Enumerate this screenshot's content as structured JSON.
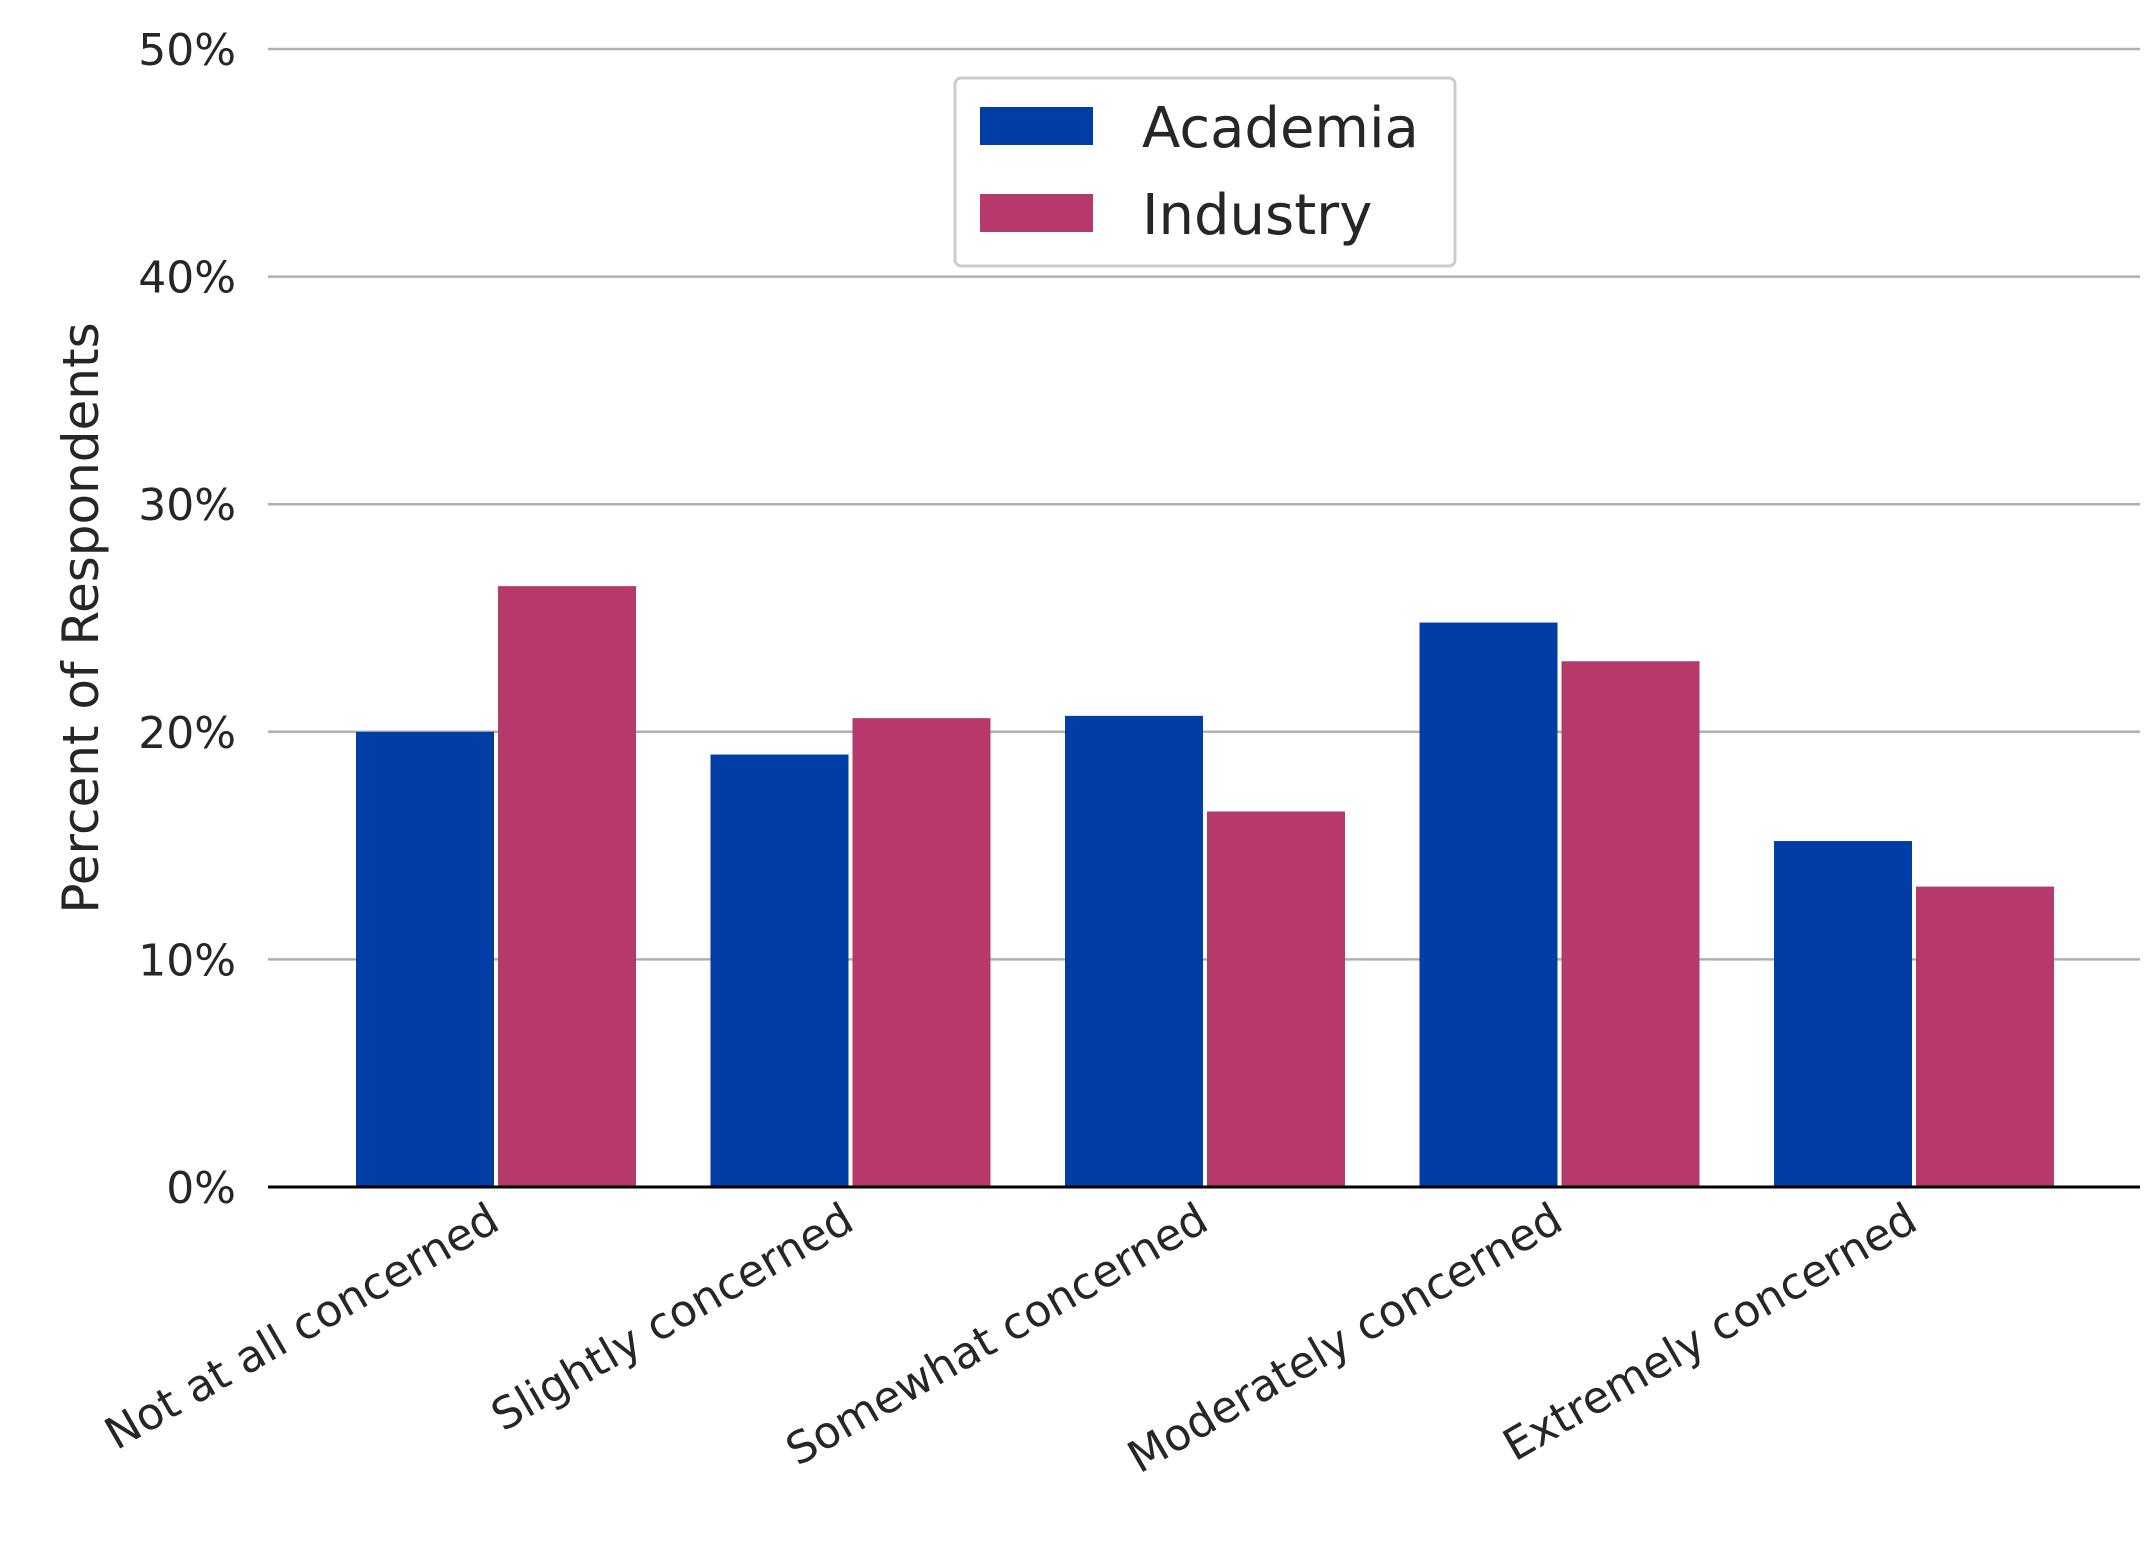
{
  "chart_data": {
    "type": "bar",
    "categories": [
      "Not at all concerned",
      "Slightly concerned",
      "Somewhat concerned",
      "Moderately concerned",
      "Extremely concerned"
    ],
    "series": [
      {
        "name": "Academia",
        "color": "#003da5",
        "values": [
          20.0,
          19.0,
          20.7,
          24.8,
          15.2
        ]
      },
      {
        "name": "Industry",
        "color": "#b53a6b",
        "values": [
          26.4,
          20.6,
          16.5,
          23.1,
          13.2
        ]
      }
    ],
    "ylabel": "Percent of Respondents",
    "ylim": [
      0,
      50
    ],
    "yticks": [
      0,
      10,
      20,
      30,
      40,
      50
    ],
    "ytick_labels": [
      "0%",
      "10%",
      "20%",
      "30%",
      "40%",
      "50%"
    ],
    "grid": "horizontal",
    "legend_position": "top-center"
  }
}
